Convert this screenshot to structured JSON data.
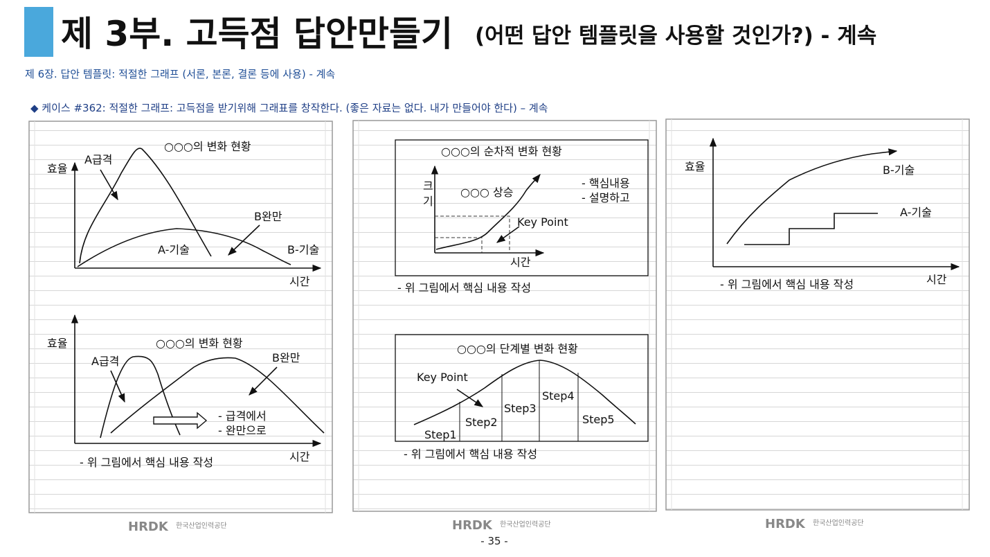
{
  "header": {
    "title": "제 3부. 고득점 답안만들기",
    "title_note": "(어떤 답안 템플릿을 사용할 것인가?) - 계속",
    "chapter": "제 6장. 답안 템플릿: 적절한 그래프 (서론, 본론, 결론 등에 사용) - 계속",
    "case": "◆ 케이스 #362:  적절한 그래프:  고득점을 받기위해 그래표를 창작한다. (좋은 자료는 없다. 내가 만들어야 한다) – 계속"
  },
  "panels": [
    {
      "figures": [
        {
          "title": "○○○의 변화 현황",
          "labels": [
            "효율",
            "A급격",
            "B완만",
            "A-기술",
            "B-기술",
            "시간"
          ]
        },
        {
          "title": "○○○의 변화 현황",
          "labels": [
            "효율",
            "A급격",
            "B완만",
            "- 급격에서",
            "- 완만으로",
            "시간"
          ],
          "note": "- 위 그림에서 핵심 내용 작성"
        }
      ]
    },
    {
      "figures": [
        {
          "title": "○○○의 순차적 변화 현황",
          "labels": [
            "크",
            "기",
            "○○○ 상승",
            "- 핵심내용",
            "- 설명하고",
            "Key Point",
            "시간"
          ],
          "note": "- 위 그림에서 핵심 내용 작성"
        },
        {
          "title": "○○○의 단계별 변화 현황",
          "labels": [
            "Key Point",
            "Step1",
            "Step2",
            "Step3",
            "Step4",
            "Step5"
          ],
          "note": "- 위 그림에서 핵심 내용 작성"
        }
      ]
    },
    {
      "figures": [
        {
          "labels": [
            "효율",
            "B-기술",
            "A-기술",
            "시간"
          ],
          "note": "- 위 그림에서 핵심 내용 작성"
        }
      ]
    }
  ],
  "footer": {
    "logos": [
      {
        "mark": "HRDK",
        "name": "한국산업인력공단"
      },
      {
        "mark": "HRDK",
        "name": "한국산업인력공단"
      },
      {
        "mark": "HRDK",
        "name": "한국산업인력공단"
      }
    ],
    "page": "- 35 -"
  }
}
